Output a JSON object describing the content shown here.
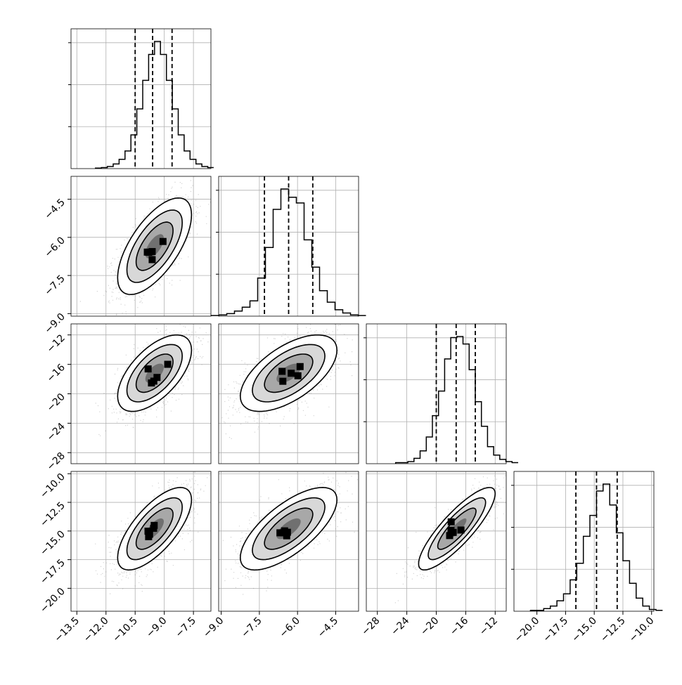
{
  "chart_data": {
    "type": "corner",
    "parameters": 4,
    "x_axes": [
      {
        "ticks": [
          "−13.5",
          "−12.0",
          "−10.5",
          "−9.0",
          "−7.5"
        ],
        "tick_values": [
          -13.5,
          -12.0,
          -10.5,
          -9.0,
          -7.5
        ],
        "range": [
          -13.8,
          -6.6
        ]
      },
      {
        "ticks": [
          "−9.0",
          "−7.5",
          "−6.0",
          "−4.5"
        ],
        "tick_values": [
          -9.0,
          -7.5,
          -6.0,
          -4.5
        ],
        "range": [
          -9.1,
          -3.6
        ]
      },
      {
        "ticks": [
          "−28",
          "−24",
          "−20",
          "−16",
          "−12"
        ],
        "tick_values": [
          -28,
          -24,
          -20,
          -16,
          -12
        ],
        "range": [
          -29.5,
          -10.5
        ]
      },
      {
        "ticks": [
          "−20.0",
          "−17.5",
          "−15.0",
          "−12.5",
          "−10.0"
        ],
        "tick_values": [
          -20.0,
          -17.5,
          -15.0,
          -12.5,
          -10.0
        ],
        "range": [
          -22.0,
          -9.8
        ]
      }
    ],
    "y_axes": [
      null,
      {
        "ticks": [
          "−4.5",
          "−6.0",
          "−7.5",
          "−9.0"
        ],
        "tick_values": [
          -4.5,
          -6.0,
          -7.5,
          -9.0
        ],
        "range": [
          -9.1,
          -3.6
        ]
      },
      {
        "ticks": [
          "−12",
          "−16",
          "−20",
          "−24",
          "−28"
        ],
        "tick_values": [
          -12,
          -16,
          -20,
          -24,
          -28
        ],
        "range": [
          -29.5,
          -10.5
        ]
      },
      {
        "ticks": [
          "−10.0",
          "−12.5",
          "−15.0",
          "−17.5",
          "−20.0"
        ],
        "tick_values": [
          -10.0,
          -12.5,
          -15.0,
          -17.5,
          -20.0
        ],
        "range": [
          -22.0,
          -9.8
        ]
      }
    ],
    "parameter_stats": [
      {
        "mean": -9.5,
        "std": 0.95,
        "quantiles": [
          -10.5,
          -9.6,
          -8.6
        ]
      },
      {
        "mean": -6.35,
        "std": 0.95,
        "quantiles": [
          -7.3,
          -6.35,
          -5.4
        ]
      },
      {
        "mean": -17.2,
        "std": 2.6,
        "quantiles": [
          -20.0,
          -17.3,
          -14.7
        ]
      },
      {
        "mean": -14.8,
        "std": 1.8,
        "quantiles": [
          -16.6,
          -14.8,
          -13.0
        ]
      }
    ],
    "histograms": [
      {
        "bins": 20,
        "counts": [
          1,
          2,
          4,
          9,
          18,
          34,
          65,
          115,
          170,
          220,
          245,
          220,
          170,
          115,
          65,
          34,
          18,
          9,
          4,
          2
        ]
      },
      {
        "bins": 20,
        "counts": [
          1,
          2,
          4,
          8,
          14,
          24,
          60,
          108,
          168,
          200,
          187,
          178,
          120,
          77,
          40,
          22,
          10,
          5,
          2,
          1
        ]
      },
      {
        "bins": 20,
        "counts": [
          1,
          1,
          2,
          5,
          12,
          25,
          45,
          68,
          98,
          118,
          119,
          112,
          88,
          58,
          35,
          16,
          8,
          4,
          2,
          1
        ]
      },
      {
        "bins": 20,
        "counts": [
          1,
          1,
          3,
          6,
          12,
          20,
          36,
          55,
          86,
          110,
          138,
          146,
          122,
          90,
          58,
          32,
          15,
          6,
          2,
          1
        ]
      }
    ],
    "correlations": [
      [
        1.0,
        0.65,
        0.6,
        0.7
      ],
      [
        0.65,
        1.0,
        0.6,
        0.7
      ],
      [
        0.6,
        0.6,
        1.0,
        0.85
      ],
      [
        0.7,
        0.7,
        0.85,
        1.0
      ]
    ],
    "contour_levels_sigma": [
      0.5,
      1.0,
      1.5,
      2.0
    ],
    "quantile_lines": "dashed",
    "grid": true,
    "colors": {
      "line": "#000000",
      "points": "#808080",
      "grid": "#b0b0b0"
    }
  }
}
